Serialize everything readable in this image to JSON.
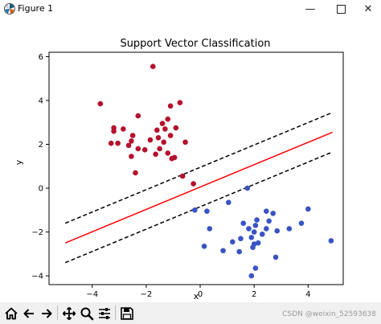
{
  "window": {
    "title": "Figure 1",
    "minimize_glyph": "—",
    "close_glyph": "✕"
  },
  "chart_data": {
    "type": "scatter",
    "title": "Support Vector Classification",
    "xlabel": "x",
    "ylabel": "y",
    "xlim": [
      -5.6,
      5.3
    ],
    "ylim": [
      -4.4,
      6.2
    ],
    "xticks": [
      -4,
      -2,
      0,
      2,
      4
    ],
    "yticks": [
      -4,
      -2,
      0,
      2,
      4,
      6
    ],
    "xtick_labels": [
      "−4",
      "−2",
      "0",
      "2",
      "4"
    ],
    "ytick_labels": [
      "−4",
      "−2",
      "0",
      "2",
      "4",
      "6"
    ],
    "grid": false,
    "colors": {
      "class_red": "#b5112d",
      "class_blue": "#3953c4",
      "decision": "#ff0000",
      "margin": "#000000"
    },
    "decision_boundary": {
      "x": [
        -5.0,
        4.9
      ],
      "y": [
        -2.5,
        2.55
      ]
    },
    "margin_upper": {
      "x": [
        -5.0,
        4.9
      ],
      "y": [
        -1.6,
        3.45
      ]
    },
    "margin_lower": {
      "x": [
        -5.0,
        4.9
      ],
      "y": [
        -3.4,
        1.65
      ]
    },
    "series": [
      {
        "color": "#b5112d",
        "points": [
          [
            -1.75,
            5.55
          ],
          [
            -3.7,
            3.85
          ],
          [
            -0.75,
            3.9
          ],
          [
            -1.1,
            3.75
          ],
          [
            -1.2,
            3.15
          ],
          [
            -1.4,
            2.95
          ],
          [
            -2.3,
            3.3
          ],
          [
            -3.2,
            2.75
          ],
          [
            -3.2,
            2.6
          ],
          [
            -2.85,
            2.7
          ],
          [
            -0.9,
            2.75
          ],
          [
            -1.3,
            2.7
          ],
          [
            -1.6,
            2.65
          ],
          [
            -2.5,
            2.4
          ],
          [
            -2.55,
            2.15
          ],
          [
            -1.85,
            2.2
          ],
          [
            -1.55,
            2.3
          ],
          [
            -1.1,
            2.4
          ],
          [
            -1.35,
            2.1
          ],
          [
            -0.55,
            2.1
          ],
          [
            -3.05,
            2.05
          ],
          [
            -3.3,
            2.05
          ],
          [
            -2.65,
            1.95
          ],
          [
            -2.3,
            1.8
          ],
          [
            -2.05,
            1.75
          ],
          [
            -1.65,
            1.55
          ],
          [
            -1.5,
            1.8
          ],
          [
            -1.2,
            1.6
          ],
          [
            -0.95,
            1.4
          ],
          [
            -2.55,
            1.45
          ],
          [
            -1.05,
            1.35
          ],
          [
            -2.4,
            0.7
          ],
          [
            -0.65,
            0.55
          ],
          [
            -0.25,
            0.2
          ]
        ]
      },
      {
        "color": "#3953c4",
        "points": [
          [
            -0.2,
            -1.0
          ],
          [
            0.25,
            -1.05
          ],
          [
            1.05,
            -0.65
          ],
          [
            1.75,
            0.0
          ],
          [
            4.0,
            -0.95
          ],
          [
            1.6,
            -1.6
          ],
          [
            2.45,
            -1.05
          ],
          [
            2.7,
            -1.15
          ],
          [
            2.1,
            -1.45
          ],
          [
            2.55,
            -1.5
          ],
          [
            2.05,
            -1.7
          ],
          [
            3.75,
            -1.6
          ],
          [
            0.35,
            -1.85
          ],
          [
            1.8,
            -1.85
          ],
          [
            2.45,
            -1.85
          ],
          [
            2.85,
            -1.95
          ],
          [
            3.3,
            -1.85
          ],
          [
            2.0,
            -2.0
          ],
          [
            2.3,
            -2.1
          ],
          [
            1.9,
            -2.25
          ],
          [
            1.5,
            -2.3
          ],
          [
            1.2,
            -2.45
          ],
          [
            2.15,
            -2.5
          ],
          [
            2.0,
            -2.55
          ],
          [
            4.85,
            -2.4
          ],
          [
            0.15,
            -2.65
          ],
          [
            1.95,
            -2.7
          ],
          [
            0.85,
            -2.85
          ],
          [
            1.45,
            -2.9
          ],
          [
            2.8,
            -3.15
          ],
          [
            2.05,
            -3.65
          ],
          [
            1.9,
            -4.0
          ]
        ]
      }
    ]
  },
  "toolbar": {
    "items": [
      {
        "name": "home-button",
        "icon": "home-icon"
      },
      {
        "name": "back-button",
        "icon": "arrow-left-icon"
      },
      {
        "name": "forward-button",
        "icon": "arrow-right-icon"
      },
      {
        "name": "pan-button",
        "icon": "move-icon"
      },
      {
        "name": "zoom-button",
        "icon": "magnifier-icon"
      },
      {
        "name": "subplots-button",
        "icon": "sliders-icon"
      },
      {
        "name": "save-button",
        "icon": "floppy-icon"
      }
    ]
  },
  "watermark": "CSDN @weixin_52593638"
}
